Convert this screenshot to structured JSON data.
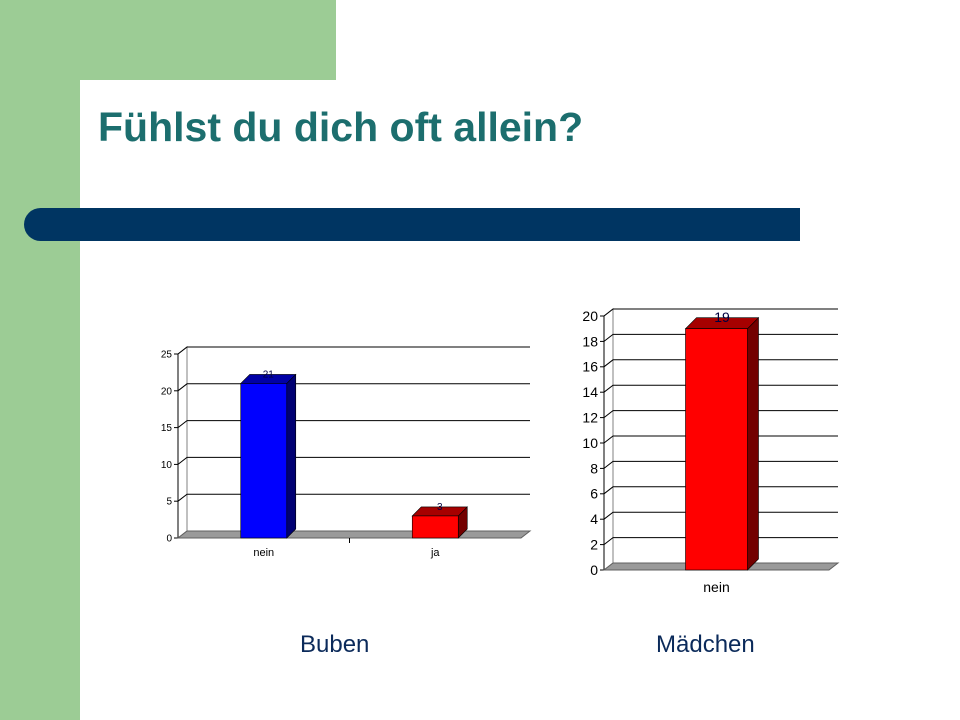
{
  "slide": {
    "title": "Fühlst du dich oft allein?",
    "colors": {
      "green": "#9ccc95",
      "title": "#1c6e6e",
      "bar": "#003562"
    }
  },
  "chart_data": [
    {
      "type": "bar",
      "categories": [
        "nein",
        "ja"
      ],
      "values": [
        21,
        3
      ],
      "bar_colors": [
        "#0000ff",
        "#ff0000"
      ],
      "data_labels": [
        "21",
        "3"
      ],
      "ylim": [
        0,
        25
      ],
      "yticks": [
        0,
        5,
        10,
        15,
        20,
        25
      ],
      "grid": true,
      "caption": "Buben"
    },
    {
      "type": "bar",
      "categories": [
        "nein"
      ],
      "values": [
        19
      ],
      "bar_colors": [
        "#ff0000"
      ],
      "data_labels": [
        "19"
      ],
      "ylim": [
        0,
        20
      ],
      "yticks": [
        0,
        2,
        4,
        6,
        8,
        10,
        12,
        14,
        16,
        18,
        20
      ],
      "grid": true,
      "caption": "Mädchen"
    }
  ]
}
